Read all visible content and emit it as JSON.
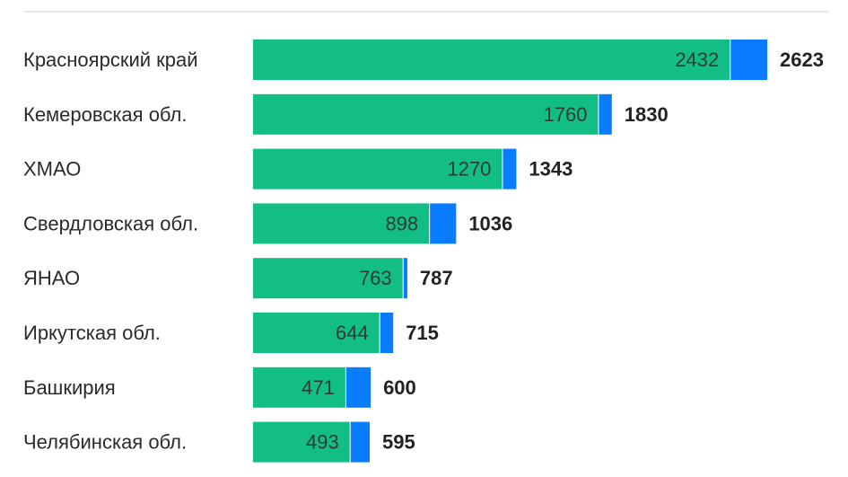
{
  "chart_data": {
    "type": "bar",
    "orientation": "horizontal",
    "stacked": true,
    "categories": [
      "Красноярский край",
      "Кемеровская обл.",
      "ХМАО",
      "Свердловская обл.",
      "ЯНАО",
      "Иркутская обл.",
      "Башкирия",
      "Челябинская обл."
    ],
    "series": [
      {
        "values": [
          2432,
          1760,
          1270,
          898,
          763,
          644,
          471,
          493
        ],
        "color": "#12be86"
      },
      {
        "values": [
          191,
          70,
          73,
          138,
          24,
          71,
          129,
          102
        ],
        "color": "#0a7cff"
      }
    ],
    "totals": [
      2623,
      1830,
      1343,
      1036,
      787,
      715,
      600,
      595
    ],
    "legend": "none",
    "grid": false
  }
}
